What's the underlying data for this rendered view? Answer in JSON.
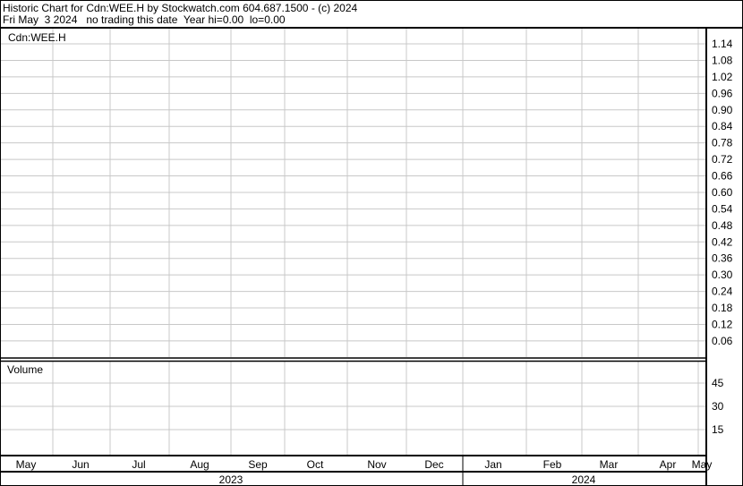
{
  "header": {
    "title": "Historic Chart for Cdn:WEE.H by Stockwatch.com 604.687.1500 - (c) 2024",
    "status": "Fri May  3 2024   no trading this date  Year hi=0.00  lo=0.00"
  },
  "chart_data": [
    {
      "type": "line",
      "title": "Cdn:WEE.H",
      "ylim": [
        0,
        1.2
      ],
      "yticks": [
        "1.14",
        "1.08",
        "1.02",
        "0.96",
        "0.90",
        "0.84",
        "0.78",
        "0.72",
        "0.66",
        "0.60",
        "0.54",
        "0.48",
        "0.42",
        "0.36",
        "0.30",
        "0.24",
        "0.18",
        "0.12",
        "0.06"
      ],
      "x_months": [
        "May",
        "Jun",
        "Jul",
        "Aug",
        "Sep",
        "Oct",
        "Nov",
        "Dec",
        "Jan",
        "Feb",
        "Mar",
        "Apr",
        "May"
      ],
      "x_years": [
        "2023",
        "2024"
      ],
      "grid": true,
      "series": []
    },
    {
      "type": "bar",
      "title": "Volume",
      "yticks": [
        "45",
        "30",
        "15"
      ],
      "grid": true,
      "series": []
    }
  ],
  "colors": {
    "grid": "#c8c8c8",
    "border": "#000000"
  }
}
